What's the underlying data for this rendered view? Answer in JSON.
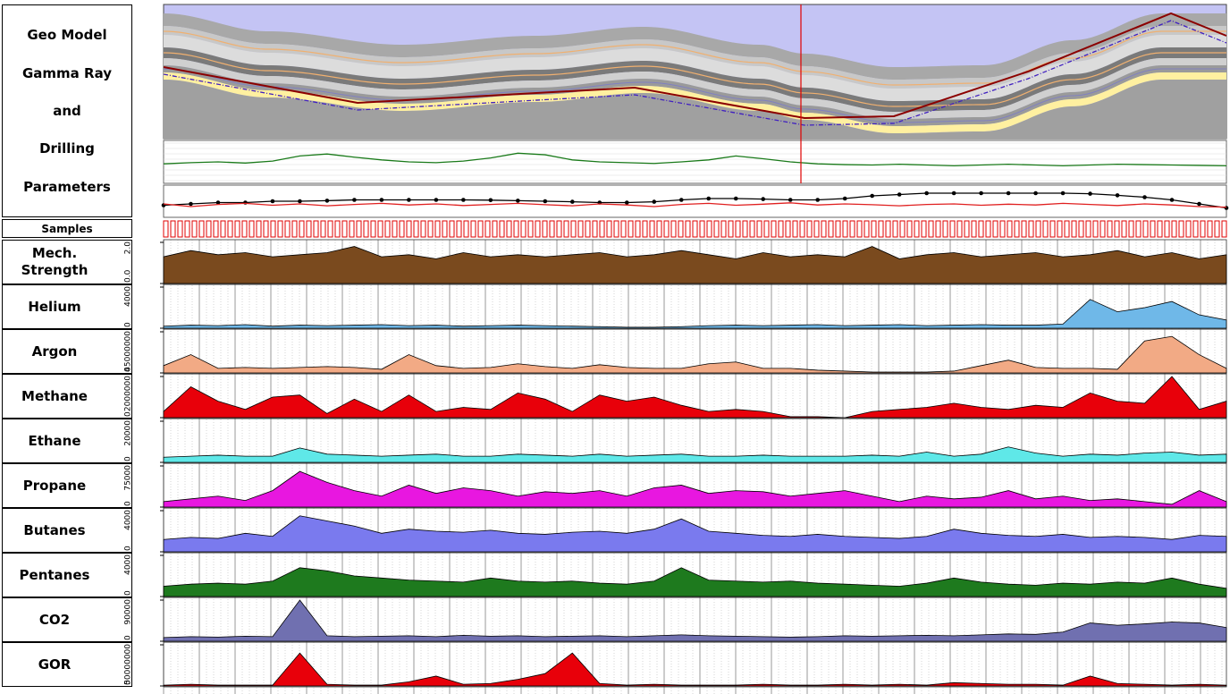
{
  "header": {
    "title_lines": [
      "Geo Model",
      "Gamma Ray",
      "and",
      "Drilling",
      "Parameters"
    ]
  },
  "samples": {
    "title": "Samples"
  },
  "chart_data": [
    {
      "type": "line",
      "color": "#1a7a1a",
      "ylim": [
        0,
        100
      ],
      "values": [
        45,
        48,
        50,
        47,
        52,
        65,
        70,
        62,
        55,
        50,
        48,
        52,
        60,
        72,
        68,
        55,
        50,
        48,
        46,
        50,
        55,
        65,
        58,
        50,
        45,
        43,
        42,
        44,
        42,
        40,
        42,
        44,
        42,
        40,
        42,
        44,
        43,
        42,
        41,
        40
      ]
    },
    {
      "type": "line",
      "ylim": [
        0,
        100
      ],
      "series": [
        {
          "color": "#000000",
          "markers": true,
          "values": [
            35,
            40,
            45,
            45,
            50,
            50,
            52,
            55,
            55,
            55,
            55,
            55,
            54,
            52,
            50,
            48,
            45,
            45,
            48,
            55,
            60,
            60,
            58,
            55,
            55,
            60,
            70,
            75,
            80,
            80,
            80,
            80,
            80,
            80,
            78,
            72,
            65,
            55,
            40,
            25
          ]
        },
        {
          "color": "#e02020",
          "markers": false,
          "values": [
            40,
            30,
            38,
            42,
            35,
            40,
            33,
            38,
            42,
            36,
            40,
            34,
            38,
            42,
            37,
            33,
            40,
            36,
            30,
            38,
            42,
            35,
            39,
            44,
            36,
            40,
            37,
            33,
            38,
            40,
            35,
            39,
            36,
            42,
            38,
            34,
            40,
            36,
            30,
            28
          ]
        }
      ]
    },
    {
      "type": "area",
      "title": "Mech. Strength",
      "color": "#7a4a1e",
      "ylim": [
        0,
        2
      ],
      "yticks": [
        {
          "value": 0,
          "label": "0.0"
        },
        {
          "value": 2,
          "label": "2.0"
        }
      ],
      "values": [
        1.3,
        1.6,
        1.4,
        1.5,
        1.3,
        1.4,
        1.5,
        1.8,
        1.3,
        1.4,
        1.2,
        1.5,
        1.3,
        1.4,
        1.3,
        1.4,
        1.5,
        1.3,
        1.4,
        1.6,
        1.4,
        1.2,
        1.5,
        1.3,
        1.4,
        1.3,
        1.8,
        1.2,
        1.4,
        1.5,
        1.3,
        1.4,
        1.5,
        1.3,
        1.4,
        1.6,
        1.3,
        1.5,
        1.2,
        1.4
      ]
    },
    {
      "type": "area",
      "title": "Helium",
      "color": "#6fb8e8",
      "ylim": [
        0,
        4000
      ],
      "yticks": [
        0,
        4000
      ],
      "values": [
        200,
        300,
        250,
        350,
        200,
        300,
        250,
        300,
        350,
        250,
        300,
        200,
        250,
        300,
        250,
        200,
        150,
        100,
        100,
        150,
        250,
        300,
        250,
        300,
        350,
        250,
        300,
        350,
        250,
        300,
        350,
        300,
        300,
        400,
        2800,
        1600,
        2000,
        2600,
        1300,
        800
      ]
    },
    {
      "type": "area",
      "title": "Argon",
      "color": "#f2aa85",
      "ylim": [
        0,
        45000000
      ],
      "yticks": [
        0,
        45000000
      ],
      "values": [
        8000000,
        20000000,
        5000000,
        6000000,
        5000000,
        6000000,
        7000000,
        6000000,
        4000000,
        20000000,
        8000000,
        5000000,
        6000000,
        10000000,
        7000000,
        5000000,
        9000000,
        6000000,
        5000000,
        5000000,
        10000000,
        12000000,
        5000000,
        5000000,
        3000000,
        2000000,
        1000000,
        1000000,
        1000000,
        2000000,
        8000000,
        14000000,
        6000000,
        5000000,
        5000000,
        4000000,
        35000000,
        40000000,
        20000000,
        5000000
      ]
    },
    {
      "type": "area",
      "title": "Methane",
      "color": "#e8000a",
      "ylim": [
        0,
        2000000
      ],
      "yticks": [
        0,
        2000000
      ],
      "values": [
        300000,
        1500000,
        800000,
        400000,
        1000000,
        1100000,
        200000,
        900000,
        300000,
        1100000,
        300000,
        500000,
        400000,
        1200000,
        900000,
        300000,
        1100000,
        800000,
        1000000,
        600000,
        300000,
        400000,
        300000,
        50000,
        50000,
        0,
        300000,
        400000,
        500000,
        700000,
        500000,
        400000,
        600000,
        500000,
        1200000,
        800000,
        700000,
        2000000,
        400000,
        800000
      ]
    },
    {
      "type": "area",
      "title": "Ethane",
      "color": "#5fe8e8",
      "ylim": [
        0,
        20000
      ],
      "yticks": [
        0,
        20000
      ],
      "values": [
        2500,
        3000,
        3500,
        3000,
        3000,
        7000,
        4000,
        3500,
        3000,
        3500,
        4000,
        3000,
        3000,
        4000,
        3500,
        3000,
        4000,
        3000,
        3500,
        4000,
        3000,
        3000,
        3500,
        3000,
        3000,
        3000,
        3500,
        3000,
        5000,
        3000,
        4000,
        7500,
        4500,
        3000,
        4000,
        3500,
        4500,
        5000,
        3500,
        4000
      ]
    },
    {
      "type": "area",
      "title": "Propane",
      "color": "#e817e0",
      "ylim": [
        0,
        75000
      ],
      "yticks": [
        0,
        75000
      ],
      "values": [
        10000,
        15000,
        20000,
        12000,
        30000,
        65000,
        45000,
        30000,
        20000,
        40000,
        25000,
        35000,
        30000,
        20000,
        28000,
        25000,
        30000,
        20000,
        35000,
        40000,
        25000,
        30000,
        28000,
        20000,
        25000,
        30000,
        20000,
        10000,
        20000,
        15000,
        18000,
        30000,
        15000,
        20000,
        12000,
        15000,
        10000,
        5000,
        30000,
        10000
      ]
    },
    {
      "type": "area",
      "title": "Butanes",
      "color": "#7a7aee",
      "ylim": [
        0,
        4000
      ],
      "yticks": [
        0,
        4000
      ],
      "values": [
        1200,
        1400,
        1300,
        1800,
        1500,
        3500,
        3000,
        2500,
        1800,
        2200,
        2000,
        1900,
        2100,
        1800,
        1700,
        1900,
        2000,
        1800,
        2200,
        3200,
        2000,
        1800,
        1600,
        1500,
        1700,
        1500,
        1400,
        1300,
        1500,
        2200,
        1800,
        1600,
        1500,
        1700,
        1400,
        1500,
        1400,
        1200,
        1600,
        1500
      ]
    },
    {
      "type": "area",
      "title": "Pentanes",
      "color": "#1e7a1e",
      "ylim": [
        0,
        4000
      ],
      "yticks": [
        0,
        4000
      ],
      "values": [
        1000,
        1200,
        1300,
        1200,
        1500,
        2800,
        2500,
        2000,
        1800,
        1600,
        1500,
        1400,
        1800,
        1500,
        1400,
        1500,
        1300,
        1200,
        1500,
        2800,
        1600,
        1500,
        1400,
        1500,
        1300,
        1200,
        1100,
        1000,
        1300,
        1800,
        1400,
        1200,
        1100,
        1300,
        1200,
        1400,
        1300,
        1800,
        1200,
        800
      ]
    },
    {
      "type": "area",
      "title": "CO2",
      "color": "#7070b0",
      "ylim": [
        0,
        90000
      ],
      "yticks": [
        0,
        90000
      ],
      "values": [
        8000,
        10000,
        9000,
        11000,
        10000,
        90000,
        12000,
        10000,
        11000,
        12000,
        10000,
        13000,
        11000,
        12000,
        10000,
        11000,
        12000,
        10000,
        12000,
        14000,
        12000,
        11000,
        10000,
        9000,
        10000,
        12000,
        11000,
        12000,
        13000,
        12000,
        14000,
        16000,
        15000,
        20000,
        40000,
        35000,
        38000,
        42000,
        40000,
        30000
      ]
    },
    {
      "type": "area",
      "title": "GOR",
      "color": "#e8000a",
      "ylim": [
        0,
        50000000
      ],
      "yticks": [
        0,
        50000000
      ],
      "values": [
        1000000,
        2000000,
        1000000,
        1000000,
        1000000,
        40000000,
        2000000,
        1000000,
        1000000,
        5000000,
        12000000,
        2000000,
        3000000,
        8000000,
        15000000,
        40000000,
        3000000,
        1000000,
        2000000,
        1000000,
        1000000,
        1000000,
        2000000,
        1000000,
        1000000,
        2000000,
        1000000,
        2000000,
        1000000,
        4000000,
        3000000,
        2000000,
        2000000,
        1000000,
        12000000,
        3000000,
        2000000,
        1000000,
        2000000,
        1000000
      ]
    }
  ]
}
